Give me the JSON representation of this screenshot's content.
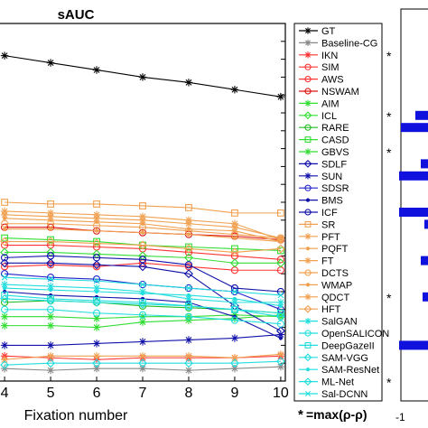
{
  "chart_data": {
    "type": "line",
    "title": "sAUC",
    "xlabel": "Fixation number",
    "ylabel": "",
    "x": [
      4,
      5,
      6,
      7,
      8,
      9,
      10
    ],
    "x_ticks": [
      "4",
      "5",
      "6",
      "7",
      "8",
      "9",
      "10"
    ],
    "xlim": [
      3.9,
      10.1
    ],
    "ylim": [
      0.0,
      1.0
    ],
    "grid": false,
    "legend_position": "right",
    "series": [
      {
        "name": "GT",
        "color": "#000000",
        "marker": "asterisk",
        "values": [
          0.91,
          0.89,
          0.87,
          0.85,
          0.835,
          0.815,
          0.795
        ]
      },
      {
        "name": "Baseline-CG",
        "color": "#888888",
        "marker": "asterisk",
        "values": [
          0.035,
          0.03,
          0.035,
          0.035,
          0.03,
          0.035,
          0.04
        ]
      },
      {
        "name": "IKN",
        "color": "#ff3333",
        "marker": "asterisk",
        "values": [
          0.07,
          0.065,
          0.06,
          0.065,
          0.065,
          0.065,
          0.07
        ]
      },
      {
        "name": "SIM",
        "color": "#ff3333",
        "marker": "circle",
        "values": [
          0.32,
          0.325,
          0.32,
          0.33,
          0.32,
          0.31,
          0.31
        ]
      },
      {
        "name": "AWS",
        "color": "#ff3333",
        "marker": "circle",
        "values": [
          0.38,
          0.38,
          0.375,
          0.37,
          0.36,
          0.35,
          0.34
        ]
      },
      {
        "name": "NSWAM",
        "color": "#dd1111",
        "marker": "circle",
        "values": [
          0.43,
          0.43,
          0.42,
          0.415,
          0.41,
          0.405,
          0.395
        ]
      },
      {
        "name": "AIM",
        "color": "#33dd33",
        "marker": "asterisk",
        "values": [
          0.155,
          0.155,
          0.15,
          0.165,
          0.17,
          0.175,
          0.185
        ]
      },
      {
        "name": "ICL",
        "color": "#33dd33",
        "marker": "diamond",
        "values": [
          0.36,
          0.36,
          0.355,
          0.35,
          0.345,
          0.33,
          0.33
        ]
      },
      {
        "name": "RARE",
        "color": "#22bb22",
        "marker": "circle",
        "values": [
          0.22,
          0.225,
          0.22,
          0.21,
          0.205,
          0.2,
          0.19
        ]
      },
      {
        "name": "CASD",
        "color": "#33dd33",
        "marker": "square",
        "values": [
          0.4,
          0.395,
          0.39,
          0.38,
          0.375,
          0.37,
          0.365
        ]
      },
      {
        "name": "GBVS",
        "color": "#33dd33",
        "marker": "asterisk",
        "values": [
          0.18,
          0.18,
          0.175,
          0.18,
          0.18,
          0.185,
          0.18
        ]
      },
      {
        "name": "SDLF",
        "color": "#1111aa",
        "marker": "diamond",
        "values": [
          0.33,
          0.33,
          0.325,
          0.32,
          0.3,
          0.21,
          0.14
        ]
      },
      {
        "name": "SUN",
        "color": "#1111aa",
        "marker": "asterisk",
        "values": [
          0.1,
          0.1,
          0.105,
          0.11,
          0.115,
          0.12,
          0.13
        ]
      },
      {
        "name": "SDSR",
        "color": "#2222cc",
        "marker": "circle",
        "values": [
          0.3,
          0.29,
          0.285,
          0.27,
          0.26,
          0.25,
          0.2
        ]
      },
      {
        "name": "BMS",
        "color": "#1111aa",
        "marker": "dot",
        "values": [
          0.25,
          0.24,
          0.235,
          0.23,
          0.22,
          0.18,
          0.12
        ]
      },
      {
        "name": "ICF",
        "color": "#1111aa",
        "marker": "circle",
        "values": [
          0.345,
          0.35,
          0.345,
          0.34,
          0.325,
          0.26,
          0.25
        ]
      },
      {
        "name": "SR",
        "color": "#f0a050",
        "marker": "square",
        "values": [
          0.5,
          0.495,
          0.495,
          0.49,
          0.485,
          0.47,
          0.47
        ]
      },
      {
        "name": "PFT",
        "color": "#f0a050",
        "marker": "asterisk",
        "values": [
          0.475,
          0.47,
          0.465,
          0.46,
          0.45,
          0.44,
          0.395
        ]
      },
      {
        "name": "PQFT",
        "color": "#f0a050",
        "marker": "dot",
        "values": [
          0.455,
          0.45,
          0.445,
          0.44,
          0.425,
          0.42,
          0.39
        ]
      },
      {
        "name": "FT",
        "color": "#f0a050",
        "marker": "asterisk",
        "values": [
          0.06,
          0.07,
          0.07,
          0.07,
          0.07,
          0.065,
          0.075
        ]
      },
      {
        "name": "DCTS",
        "color": "#f0a050",
        "marker": "circle",
        "values": [
          0.44,
          0.44,
          0.435,
          0.43,
          0.42,
          0.41,
          0.4
        ]
      },
      {
        "name": "WMAP",
        "color": "#f0a050",
        "marker": "dot",
        "values": [
          0.425,
          0.425,
          0.42,
          0.415,
          0.41,
          0.4,
          0.39
        ]
      },
      {
        "name": "QDCT",
        "color": "#f0a050",
        "marker": "star",
        "values": [
          0.465,
          0.46,
          0.455,
          0.45,
          0.44,
          0.43,
          0.4
        ]
      },
      {
        "name": "HFT",
        "color": "#f0a050",
        "marker": "diamond",
        "values": [
          0.39,
          0.39,
          0.385,
          0.38,
          0.37,
          0.36,
          0.37
        ]
      },
      {
        "name": "SalGAN",
        "color": "#22dddd",
        "marker": "asterisk",
        "values": [
          0.27,
          0.265,
          0.26,
          0.25,
          0.23,
          0.22,
          0.22
        ]
      },
      {
        "name": "OpenSALICON",
        "color": "#22dddd",
        "marker": "circle",
        "values": [
          0.2,
          0.2,
          0.19,
          0.185,
          0.18,
          0.17,
          0.16
        ]
      },
      {
        "name": "DeepGazeII",
        "color": "#22dddd",
        "marker": "square",
        "values": [
          0.24,
          0.23,
          0.225,
          0.22,
          0.21,
          0.2,
          0.19
        ]
      },
      {
        "name": "SAM-VGG",
        "color": "#22dddd",
        "marker": "diamond",
        "values": [
          0.23,
          0.225,
          0.22,
          0.215,
          0.21,
          0.2,
          0.18
        ]
      },
      {
        "name": "SAM-ResNet",
        "color": "#22dddd",
        "marker": "dot",
        "values": [
          0.26,
          0.255,
          0.25,
          0.245,
          0.24,
          0.23,
          0.21
        ]
      },
      {
        "name": "ML-Net",
        "color": "#22dddd",
        "marker": "diamond",
        "values": [
          0.045,
          0.05,
          0.05,
          0.05,
          0.05,
          0.05,
          0.055
        ]
      },
      {
        "name": "Sal-DCNN",
        "color": "#22dddd",
        "marker": "cross",
        "values": [
          0.29,
          0.285,
          0.28,
          0.27,
          0.26,
          0.25,
          0.24
        ]
      }
    ],
    "star_marked": [
      "IKN",
      "ICL",
      "GBVS",
      "QDCT",
      "ML-Net"
    ],
    "footnote_star": "*",
    "footnote_formula": "=max(ρ-ρ)",
    "side_panel": {
      "axis_tick": "-1",
      "bars_order": [
        "ICL",
        "RARE",
        "SDLF",
        "SUN",
        "ICF",
        "SR",
        "FT",
        "QDCT",
        "DeepGazeII"
      ],
      "bars": [
        -0.55,
        -0.95,
        -0.4,
        -1.0,
        -1.0,
        -0.3,
        -0.4,
        -0.35,
        -1.0
      ],
      "bar_color": "#1111dd"
    }
  }
}
